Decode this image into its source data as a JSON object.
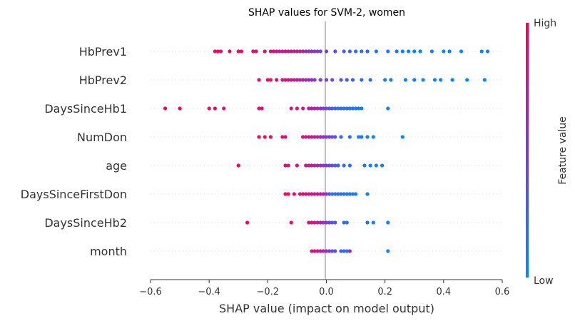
{
  "chart_data": {
    "type": "scatter",
    "title": "SHAP values for SVM-2, women",
    "xlabel": "SHAP value (impact on model output)",
    "xlim": [
      -0.6,
      0.6
    ],
    "xticks": [
      "−0.6",
      "−0.4",
      "−0.2",
      "0.0",
      "0.2",
      "0.4",
      "0.6"
    ],
    "xtick_values": [
      -0.6,
      -0.4,
      -0.2,
      0.0,
      0.2,
      0.4,
      0.6
    ],
    "features": [
      "HbPrev1",
      "HbPrev2",
      "DaysSinceHb1",
      "NumDon",
      "age",
      "DaysSinceFirstDon",
      "DaysSinceHb2",
      "month"
    ],
    "colorbar": {
      "label": "Feature value",
      "high": "High",
      "low": "Low",
      "high_color": "#ff0052",
      "low_color": "#008bfb"
    },
    "series": [
      {
        "feature": "HbPrev1",
        "points": [
          [
            -0.38,
            0.9
          ],
          [
            -0.36,
            0.85
          ],
          [
            -0.37,
            0.95
          ],
          [
            -0.33,
            0.9
          ],
          [
            -0.29,
            0.95
          ],
          [
            -0.3,
            0.9
          ],
          [
            -0.25,
            0.85
          ],
          [
            -0.24,
            0.9
          ],
          [
            -0.21,
            0.85
          ],
          [
            -0.19,
            0.8
          ],
          [
            -0.18,
            0.9
          ],
          [
            -0.17,
            0.8
          ],
          [
            -0.16,
            0.75
          ],
          [
            -0.15,
            0.8
          ],
          [
            -0.14,
            0.85
          ],
          [
            -0.13,
            0.75
          ],
          [
            -0.12,
            0.8
          ],
          [
            -0.11,
            0.75
          ],
          [
            -0.1,
            0.8
          ],
          [
            -0.09,
            0.75
          ],
          [
            -0.08,
            0.7
          ],
          [
            -0.07,
            0.65
          ],
          [
            -0.06,
            0.6
          ],
          [
            -0.05,
            0.55
          ],
          [
            -0.04,
            0.55
          ],
          [
            -0.03,
            0.5
          ],
          [
            -0.02,
            0.45
          ],
          [
            0.0,
            0.45
          ],
          [
            0.03,
            0.4
          ],
          [
            0.06,
            0.3
          ],
          [
            0.08,
            0.25
          ],
          [
            0.1,
            0.2
          ],
          [
            0.12,
            0.15
          ],
          [
            0.14,
            0.15
          ],
          [
            0.17,
            0.12
          ],
          [
            0.21,
            0.1
          ],
          [
            0.24,
            0.1
          ],
          [
            0.26,
            0.05
          ],
          [
            0.28,
            0.05
          ],
          [
            0.3,
            0.05
          ],
          [
            0.32,
            0.04
          ],
          [
            0.36,
            0.03
          ],
          [
            0.4,
            0.02
          ],
          [
            0.42,
            0.02
          ],
          [
            0.46,
            0.01
          ],
          [
            0.53,
            0.0
          ],
          [
            0.55,
            0.0
          ]
        ]
      },
      {
        "feature": "HbPrev2",
        "points": [
          [
            -0.23,
            0.9
          ],
          [
            -0.2,
            0.92
          ],
          [
            -0.19,
            0.85
          ],
          [
            -0.17,
            0.88
          ],
          [
            -0.15,
            0.8
          ],
          [
            -0.14,
            0.85
          ],
          [
            -0.13,
            0.8
          ],
          [
            -0.12,
            0.8
          ],
          [
            -0.11,
            0.75
          ],
          [
            -0.1,
            0.78
          ],
          [
            -0.09,
            0.7
          ],
          [
            -0.08,
            0.72
          ],
          [
            -0.07,
            0.65
          ],
          [
            -0.06,
            0.6
          ],
          [
            -0.05,
            0.6
          ],
          [
            -0.04,
            0.55
          ],
          [
            -0.02,
            0.5
          ],
          [
            0.0,
            0.45
          ],
          [
            0.02,
            0.4
          ],
          [
            0.05,
            0.35
          ],
          [
            0.07,
            0.3
          ],
          [
            0.09,
            0.3
          ],
          [
            0.12,
            0.2
          ],
          [
            0.15,
            0.15
          ],
          [
            0.2,
            0.1
          ],
          [
            0.22,
            0.1
          ],
          [
            0.27,
            0.05
          ],
          [
            0.3,
            0.05
          ],
          [
            0.33,
            0.04
          ],
          [
            0.37,
            0.03
          ],
          [
            0.39,
            0.02
          ],
          [
            0.43,
            0.02
          ],
          [
            0.48,
            0.01
          ],
          [
            0.54,
            0.0
          ]
        ]
      },
      {
        "feature": "DaysSinceHb1",
        "points": [
          [
            -0.55,
            1.0
          ],
          [
            -0.5,
            1.0
          ],
          [
            -0.4,
            0.95
          ],
          [
            -0.38,
            0.95
          ],
          [
            -0.35,
            0.9
          ],
          [
            -0.23,
            0.85
          ],
          [
            -0.22,
            0.85
          ],
          [
            -0.12,
            0.8
          ],
          [
            -0.1,
            0.8
          ],
          [
            -0.08,
            0.75
          ],
          [
            -0.06,
            0.7
          ],
          [
            -0.05,
            0.7
          ],
          [
            -0.04,
            0.65
          ],
          [
            -0.03,
            0.6
          ],
          [
            -0.02,
            0.55
          ],
          [
            -0.01,
            0.5
          ],
          [
            0.0,
            0.4
          ],
          [
            0.01,
            0.35
          ],
          [
            0.02,
            0.3
          ],
          [
            0.03,
            0.25
          ],
          [
            0.04,
            0.2
          ],
          [
            0.05,
            0.2
          ],
          [
            0.06,
            0.15
          ],
          [
            0.07,
            0.15
          ],
          [
            0.08,
            0.15
          ],
          [
            0.09,
            0.1
          ],
          [
            0.1,
            0.1
          ],
          [
            0.11,
            0.1
          ],
          [
            0.12,
            0.08
          ],
          [
            0.21,
            0.05
          ]
        ]
      },
      {
        "feature": "NumDon",
        "points": [
          [
            -0.23,
            0.95
          ],
          [
            -0.21,
            0.95
          ],
          [
            -0.19,
            0.9
          ],
          [
            -0.15,
            0.9
          ],
          [
            -0.14,
            0.88
          ],
          [
            -0.08,
            0.85
          ],
          [
            -0.07,
            0.8
          ],
          [
            -0.06,
            0.8
          ],
          [
            -0.05,
            0.78
          ],
          [
            -0.04,
            0.75
          ],
          [
            -0.03,
            0.7
          ],
          [
            -0.02,
            0.65
          ],
          [
            -0.01,
            0.6
          ],
          [
            0.0,
            0.5
          ],
          [
            0.01,
            0.45
          ],
          [
            0.02,
            0.4
          ],
          [
            0.03,
            0.3
          ],
          [
            0.05,
            0.25
          ],
          [
            0.08,
            0.15
          ],
          [
            0.11,
            0.1
          ],
          [
            0.12,
            0.1
          ],
          [
            0.14,
            0.08
          ],
          [
            0.16,
            0.05
          ],
          [
            0.26,
            0.02
          ]
        ]
      },
      {
        "feature": "age",
        "points": [
          [
            -0.3,
            0.95
          ],
          [
            -0.14,
            0.85
          ],
          [
            -0.13,
            0.85
          ],
          [
            -0.1,
            0.8
          ],
          [
            -0.07,
            0.8
          ],
          [
            -0.06,
            0.75
          ],
          [
            -0.05,
            0.75
          ],
          [
            -0.04,
            0.7
          ],
          [
            -0.03,
            0.65
          ],
          [
            -0.02,
            0.6
          ],
          [
            -0.01,
            0.55
          ],
          [
            0.0,
            0.5
          ],
          [
            0.01,
            0.45
          ],
          [
            0.02,
            0.4
          ],
          [
            0.03,
            0.3
          ],
          [
            0.04,
            0.25
          ],
          [
            0.06,
            0.2
          ],
          [
            0.08,
            0.15
          ],
          [
            0.13,
            0.1
          ],
          [
            0.15,
            0.05
          ],
          [
            0.17,
            0.05
          ],
          [
            0.19,
            0.05
          ]
        ]
      },
      {
        "feature": "DaysSinceFirstDon",
        "points": [
          [
            -0.14,
            0.95
          ],
          [
            -0.13,
            0.95
          ],
          [
            -0.11,
            0.9
          ],
          [
            -0.09,
            0.9
          ],
          [
            -0.08,
            0.88
          ],
          [
            -0.07,
            0.85
          ],
          [
            -0.06,
            0.85
          ],
          [
            -0.05,
            0.8
          ],
          [
            -0.04,
            0.8
          ],
          [
            -0.03,
            0.75
          ],
          [
            -0.02,
            0.75
          ],
          [
            -0.01,
            0.7
          ],
          [
            0.0,
            0.5
          ],
          [
            0.01,
            0.3
          ],
          [
            0.02,
            0.2
          ],
          [
            0.03,
            0.2
          ],
          [
            0.04,
            0.2
          ],
          [
            0.05,
            0.15
          ],
          [
            0.06,
            0.15
          ],
          [
            0.07,
            0.15
          ],
          [
            0.08,
            0.1
          ],
          [
            0.09,
            0.1
          ],
          [
            0.1,
            0.1
          ],
          [
            0.14,
            0.05
          ]
        ]
      },
      {
        "feature": "DaysSinceHb2",
        "points": [
          [
            -0.27,
            0.95
          ],
          [
            -0.12,
            0.9
          ],
          [
            -0.06,
            0.85
          ],
          [
            -0.05,
            0.85
          ],
          [
            -0.04,
            0.8
          ],
          [
            -0.03,
            0.75
          ],
          [
            -0.02,
            0.7
          ],
          [
            -0.01,
            0.6
          ],
          [
            0.0,
            0.5
          ],
          [
            0.01,
            0.4
          ],
          [
            0.02,
            0.35
          ],
          [
            0.03,
            0.3
          ],
          [
            0.06,
            0.2
          ],
          [
            0.07,
            0.15
          ],
          [
            0.14,
            0.1
          ],
          [
            0.16,
            0.05
          ],
          [
            0.21,
            0.05
          ]
        ]
      },
      {
        "feature": "month",
        "points": [
          [
            -0.05,
            0.9
          ],
          [
            -0.04,
            0.85
          ],
          [
            -0.03,
            0.8
          ],
          [
            -0.02,
            0.75
          ],
          [
            -0.01,
            0.7
          ],
          [
            0.0,
            0.6
          ],
          [
            0.01,
            0.5
          ],
          [
            0.02,
            0.4
          ],
          [
            0.03,
            0.35
          ],
          [
            0.05,
            0.3
          ],
          [
            0.06,
            0.2
          ],
          [
            0.07,
            0.15
          ],
          [
            0.08,
            0.6
          ],
          [
            0.21,
            0.05
          ]
        ]
      }
    ]
  }
}
